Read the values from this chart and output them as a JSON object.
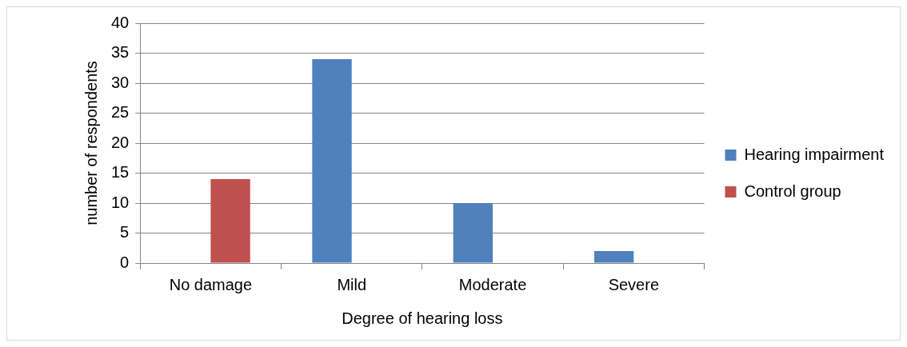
{
  "chart_data": {
    "type": "bar",
    "xlabel": "Degree of hearing loss",
    "ylabel": "number of respondents",
    "categories": [
      "No damage",
      "Mild",
      "Moderate",
      "Severe"
    ],
    "series": [
      {
        "name": "Hearing impairment",
        "color": "#4f81bd",
        "values": [
          0,
          34,
          10,
          2
        ]
      },
      {
        "name": "Control group",
        "color": "#c0504d",
        "values": [
          14,
          0,
          0,
          0
        ]
      }
    ],
    "ylim": [
      0,
      40
    ],
    "yticks": [
      0,
      5,
      10,
      15,
      20,
      25,
      30,
      35,
      40
    ],
    "grid": "y",
    "legend": "right"
  }
}
